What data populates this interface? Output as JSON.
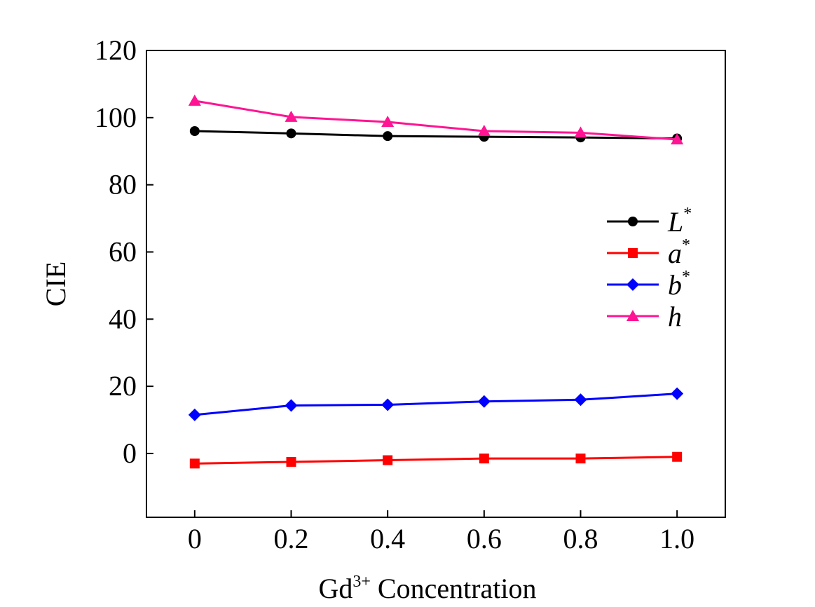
{
  "chart_data": {
    "type": "line",
    "title": "",
    "xlabel": {
      "base": "Gd",
      "sup": "3+",
      "rest": " Concentration"
    },
    "ylabel": "CIE",
    "x": [
      0,
      0.2,
      0.4,
      0.6,
      0.8,
      1.0
    ],
    "x_tick_labels": [
      "0",
      "0.2",
      "0.4",
      "0.6",
      "0.8",
      "1.0"
    ],
    "y_ticks": [
      0,
      20,
      40,
      60,
      80,
      100,
      120
    ],
    "y_tick_labels": [
      "0",
      "20",
      "40",
      "60",
      "80",
      "100",
      "120"
    ],
    "xlim": [
      -0.1,
      1.1
    ],
    "ylim": [
      -19,
      120
    ],
    "grid": false,
    "legend_position": "center-right",
    "series": [
      {
        "name": "L",
        "sup": "*",
        "color": "#000000",
        "marker": "circle",
        "values": [
          96,
          95.3,
          94.5,
          94.3,
          94.1,
          93.8
        ]
      },
      {
        "name": "a",
        "sup": "*",
        "color": "#ff0000",
        "marker": "square",
        "values": [
          -3,
          -2.5,
          -2,
          -1.5,
          -1.5,
          -1
        ]
      },
      {
        "name": "b",
        "sup": "*",
        "color": "#0000ff",
        "marker": "diamond",
        "values": [
          11.5,
          14.3,
          14.5,
          15.5,
          16,
          17.8
        ]
      },
      {
        "name": "h",
        "sup": "",
        "color": "#ff1493",
        "marker": "triangle",
        "values": [
          105,
          100.2,
          98.7,
          96,
          95.5,
          93.5
        ]
      }
    ]
  }
}
